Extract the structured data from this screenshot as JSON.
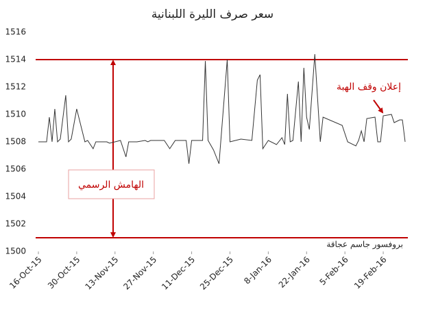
{
  "chart_data": {
    "type": "line",
    "title": "سعر صرف الليرة اللبنانية",
    "x": [
      "2015-10-16",
      "2015-10-19",
      "2015-10-20",
      "2015-10-21",
      "2015-10-22",
      "2015-10-23",
      "2015-10-24",
      "2015-10-26",
      "2015-10-27",
      "2015-10-28",
      "2015-10-30",
      "2015-11-02",
      "2015-11-03",
      "2015-11-05",
      "2015-11-06",
      "2015-11-10",
      "2015-11-11",
      "2015-11-15",
      "2015-11-17",
      "2015-11-18",
      "2015-11-21",
      "2015-11-24",
      "2015-11-25",
      "2015-11-26",
      "2015-12-01",
      "2015-12-03",
      "2015-12-05",
      "2015-12-09",
      "2015-12-10",
      "2015-12-11",
      "2015-12-15",
      "2015-12-16",
      "2015-12-17",
      "2015-12-19",
      "2015-12-21",
      "2015-12-24",
      "2015-12-25",
      "2015-12-29",
      "2016-01-02",
      "2016-01-04",
      "2016-01-05",
      "2016-01-06",
      "2016-01-08",
      "2016-01-11",
      "2016-01-13",
      "2016-01-14",
      "2016-01-15",
      "2016-01-16",
      "2016-01-17",
      "2016-01-19",
      "2016-01-20",
      "2016-01-21",
      "2016-01-22",
      "2016-01-23",
      "2016-01-25",
      "2016-01-27",
      "2016-01-28",
      "2016-02-04",
      "2016-02-06",
      "2016-02-09",
      "2016-02-10",
      "2016-02-11",
      "2016-02-12",
      "2016-02-13",
      "2016-02-16",
      "2016-02-17",
      "2016-02-18",
      "2016-02-19",
      "2016-02-22",
      "2016-02-23",
      "2016-02-25",
      "2016-02-26",
      "2016-02-27"
    ],
    "series": [
      {
        "color": "#333333",
        "values": [
          1508,
          1508,
          1509.8,
          1508,
          1510.4,
          1508,
          1508.2,
          1511.4,
          1508,
          1508.2,
          1510.4,
          1508,
          1508.1,
          1507.5,
          1508,
          1508,
          1507.9,
          1508.1,
          1506.9,
          1508,
          1508,
          1508.1,
          1508,
          1508.1,
          1508.1,
          1507.5,
          1508.1,
          1508.1,
          1506.4,
          1508.1,
          1508.1,
          1513.9,
          1508.1,
          1507.4,
          1506.4,
          1514,
          1508,
          1508.2,
          1508.1,
          1512.5,
          1512.9,
          1507.5,
          1508.1,
          1507.8,
          1508.3,
          1507.8,
          1511.5,
          1508,
          1508.1,
          1512.4,
          1508,
          1513.4,
          1509.8,
          1508.9,
          1514.4,
          1508,
          1509.8,
          1509.2,
          1508,
          1507.7,
          1508.1,
          1508.8,
          1508,
          1509.7,
          1509.8,
          1508,
          1508,
          1509.9,
          1510,
          1509.4,
          1509.6,
          1509.6,
          1508
        ]
      }
    ],
    "xlim": [
      "2015-10-15",
      "2016-02-28"
    ],
    "xticks": [
      {
        "value": "2015-10-16",
        "label": "16-Oct-15"
      },
      {
        "value": "2015-10-30",
        "label": "30-Oct-15"
      },
      {
        "value": "2015-11-13",
        "label": "13-Nov-15"
      },
      {
        "value": "2015-11-27",
        "label": "27-Nov-15"
      },
      {
        "value": "2015-12-11",
        "label": "11-Dec-15"
      },
      {
        "value": "2015-12-25",
        "label": "25-Dec-15"
      },
      {
        "value": "2016-01-08",
        "label": "8-Jan-16"
      },
      {
        "value": "2016-01-22",
        "label": "22-Jan-16"
      },
      {
        "value": "2016-02-05",
        "label": "5-Feb-16"
      },
      {
        "value": "2016-02-19",
        "label": "19-Feb-16"
      }
    ],
    "ylim": [
      1500,
      1516
    ],
    "yticks": [
      1500,
      1502,
      1504,
      1506,
      1508,
      1510,
      1512,
      1514,
      1516
    ],
    "reference_lines": {
      "color": "#c00000",
      "values": [
        1514,
        1501
      ]
    },
    "band_label": "الهامش الرسمي",
    "event_label": "إعلان وقف الهبة",
    "source": "بروفسور جاسم عجاقة"
  }
}
